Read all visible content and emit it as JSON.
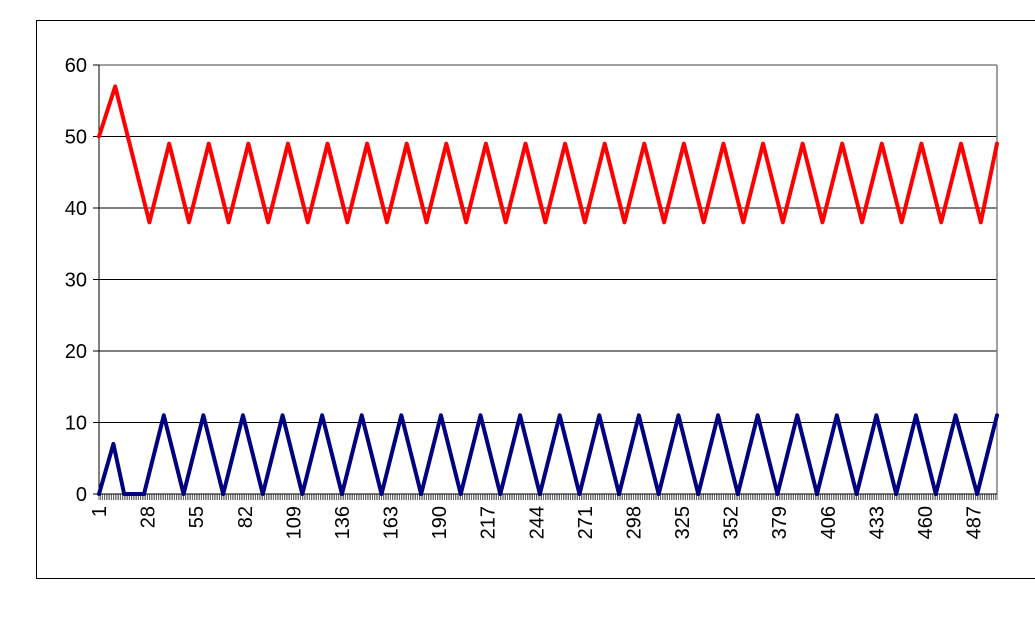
{
  "chart_data": {
    "type": "line",
    "title": "",
    "xlabel": "",
    "ylabel": "",
    "ylim": [
      0,
      60
    ],
    "y_ticks": [
      0,
      10,
      20,
      30,
      40,
      50,
      60
    ],
    "x_tick_labels": [
      "1",
      "28",
      "55",
      "82",
      "109",
      "136",
      "163",
      "190",
      "217",
      "244",
      "271",
      "298",
      "325",
      "352",
      "379",
      "406",
      "433",
      "460",
      "487"
    ],
    "x_range": [
      1,
      500
    ],
    "grid": true,
    "legend": "none",
    "series": [
      {
        "color": "#ff0000",
        "points": [
          [
            1,
            50
          ],
          [
            10,
            57
          ],
          [
            17,
            50
          ],
          [
            29,
            38
          ],
          [
            40,
            49
          ],
          [
            51,
            38
          ],
          [
            62,
            49
          ],
          [
            73,
            38
          ],
          [
            84,
            49
          ],
          [
            95,
            38
          ],
          [
            106,
            49
          ],
          [
            117,
            38
          ],
          [
            128,
            49
          ],
          [
            139,
            38
          ],
          [
            150,
            49
          ],
          [
            161,
            38
          ],
          [
            172,
            49
          ],
          [
            183,
            38
          ],
          [
            194,
            49
          ],
          [
            205,
            38
          ],
          [
            216,
            49
          ],
          [
            227,
            38
          ],
          [
            238,
            49
          ],
          [
            249,
            38
          ],
          [
            260,
            49
          ],
          [
            271,
            38
          ],
          [
            282,
            49
          ],
          [
            293,
            38
          ],
          [
            304,
            49
          ],
          [
            315,
            38
          ],
          [
            326,
            49
          ],
          [
            337,
            38
          ],
          [
            348,
            49
          ],
          [
            359,
            38
          ],
          [
            370,
            49
          ],
          [
            381,
            38
          ],
          [
            392,
            49
          ],
          [
            403,
            38
          ],
          [
            414,
            49
          ],
          [
            425,
            38
          ],
          [
            436,
            49
          ],
          [
            447,
            38
          ],
          [
            458,
            49
          ],
          [
            469,
            38
          ],
          [
            480,
            49
          ],
          [
            491,
            38
          ],
          [
            500,
            49
          ]
        ]
      },
      {
        "color": "#000080",
        "points": [
          [
            1,
            0
          ],
          [
            9,
            7
          ],
          [
            15,
            0
          ],
          [
            26,
            0
          ],
          [
            37,
            11
          ],
          [
            48,
            0
          ],
          [
            59,
            11
          ],
          [
            70,
            0
          ],
          [
            81,
            11
          ],
          [
            92,
            0
          ],
          [
            103,
            11
          ],
          [
            114,
            0
          ],
          [
            125,
            11
          ],
          [
            136,
            0
          ],
          [
            147,
            11
          ],
          [
            158,
            0
          ],
          [
            169,
            11
          ],
          [
            180,
            0
          ],
          [
            191,
            11
          ],
          [
            202,
            0
          ],
          [
            213,
            11
          ],
          [
            224,
            0
          ],
          [
            235,
            11
          ],
          [
            246,
            0
          ],
          [
            257,
            11
          ],
          [
            268,
            0
          ],
          [
            279,
            11
          ],
          [
            290,
            0
          ],
          [
            301,
            11
          ],
          [
            312,
            0
          ],
          [
            323,
            11
          ],
          [
            334,
            0
          ],
          [
            345,
            11
          ],
          [
            356,
            0
          ],
          [
            367,
            11
          ],
          [
            378,
            0
          ],
          [
            389,
            11
          ],
          [
            400,
            0
          ],
          [
            411,
            11
          ],
          [
            422,
            0
          ],
          [
            433,
            11
          ],
          [
            444,
            0
          ],
          [
            455,
            11
          ],
          [
            466,
            0
          ],
          [
            477,
            11
          ],
          [
            489,
            0
          ],
          [
            500,
            11
          ]
        ]
      }
    ]
  }
}
